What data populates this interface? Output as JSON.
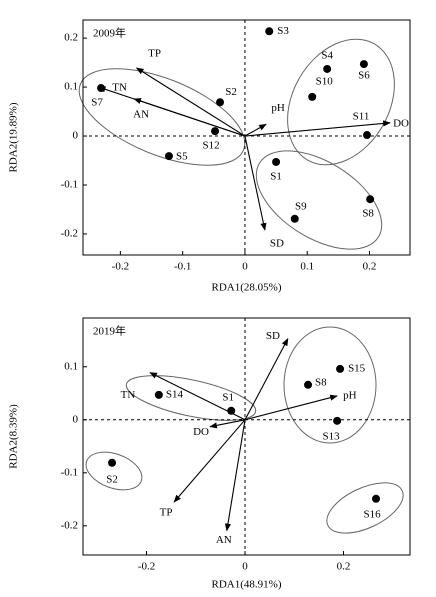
{
  "chart_data": [
    {
      "type": "biplot",
      "annotation": "2009年",
      "xlabel": "RDA1(28.05%)",
      "ylabel": "RDA2(19.89%)",
      "xlim": [
        -0.26,
        0.265
      ],
      "ylim": [
        -0.243,
        0.237
      ],
      "xticks": [
        -0.2,
        -0.1,
        0,
        0.1,
        0.2
      ],
      "yticks": [
        -0.2,
        -0.1,
        0,
        0.1,
        0.2
      ],
      "color": "#000000",
      "points": {
        "labels": [
          "S3",
          "S4",
          "S6",
          "S10",
          "S11",
          "S2",
          "S7",
          "S12",
          "S5",
          "S1",
          "S9",
          "S8"
        ],
        "x": [
          0.039,
          0.132,
          0.191,
          0.108,
          0.196,
          -0.04,
          -0.231,
          -0.048,
          -0.122,
          0.05,
          0.08,
          0.201
        ],
        "y": [
          0.214,
          0.137,
          0.147,
          0.08,
          0.002,
          0.069,
          0.098,
          0.01,
          -0.041,
          -0.053,
          -0.169,
          -0.129
        ]
      },
      "arrows": {
        "labels": [
          "TP",
          "TN",
          "AN",
          "pH",
          "DO",
          "SD"
        ],
        "x": [
          -0.174,
          -0.235,
          -0.178,
          0.034,
          0.233,
          0.032
        ],
        "y": [
          0.139,
          0.1,
          0.076,
          0.024,
          0.027,
          -0.192
        ]
      }
    },
    {
      "type": "biplot",
      "annotation": "2019年",
      "xlabel": "RDA1(48.91%)",
      "ylabel": "RDA2(8.39%)",
      "xlim": [
        -0.329,
        0.335
      ],
      "ylim": [
        -0.255,
        0.192
      ],
      "xticks": [
        -0.2,
        0,
        0.2
      ],
      "yticks": [
        -0.2,
        -0.1,
        0,
        0.1
      ],
      "color": "#000000",
      "points": {
        "labels": [
          "S14",
          "S1",
          "S15",
          "S8",
          "S13",
          "S2",
          "S16"
        ],
        "x": [
          -0.175,
          -0.028,
          0.193,
          0.128,
          0.187,
          -0.27,
          0.266
        ],
        "y": [
          0.047,
          0.017,
          0.096,
          0.066,
          -0.002,
          -0.081,
          -0.149
        ]
      },
      "arrows": {
        "labels": [
          "SD",
          "pH",
          "TN",
          "DO",
          "TP",
          "AN"
        ],
        "x": [
          0.087,
          0.187,
          -0.193,
          -0.071,
          -0.144,
          -0.037
        ],
        "y": [
          0.153,
          0.045,
          0.089,
          -0.013,
          -0.155,
          -0.209
        ]
      }
    }
  ]
}
